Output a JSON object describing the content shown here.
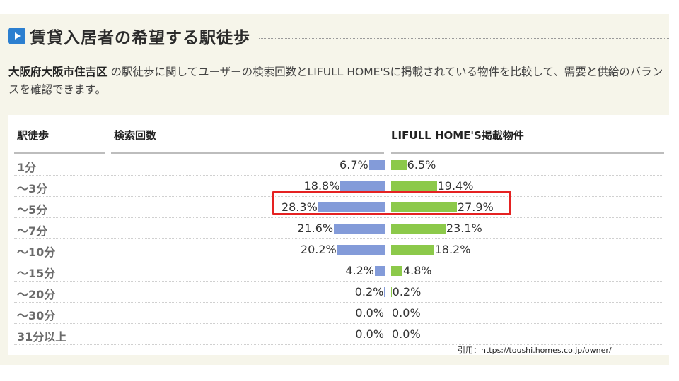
{
  "heading": {
    "title": "賃貸入居者の希望する駅徒歩"
  },
  "description": {
    "location": "大阪府大阪市住吉区",
    "text": " の駅徒歩に関してユーザーの検索回数とLIFULL HOME'Sに掲載されている物件を比較して、需要と供給のバランスを確認できます。"
  },
  "colors": {
    "search_bar": "#839bd9",
    "listing_bar": "#8cc94a",
    "highlight": "#e52222",
    "icon": "#2c7fd0"
  },
  "chart_data": {
    "type": "bar",
    "columns": {
      "category": "駅徒歩",
      "search": "検索回数",
      "listing": "LIFULL HOME'S掲載物件"
    },
    "categories": [
      "1分",
      "～3分",
      "～5分",
      "～7分",
      "～10分",
      "～15分",
      "～20分",
      "～30分",
      "31分以上"
    ],
    "series": [
      {
        "name": "検索回数",
        "values": [
          6.7,
          18.8,
          28.3,
          21.6,
          20.2,
          4.2,
          0.2,
          0.0,
          0.0
        ]
      },
      {
        "name": "LIFULL HOME'S掲載物件",
        "values": [
          6.5,
          19.4,
          27.9,
          23.1,
          18.2,
          4.8,
          0.2,
          0.0,
          0.0
        ]
      }
    ],
    "value_suffix": "%",
    "highlighted_category": "～5分"
  },
  "source": "引用：https://toushi.homes.co.jp/owner/"
}
